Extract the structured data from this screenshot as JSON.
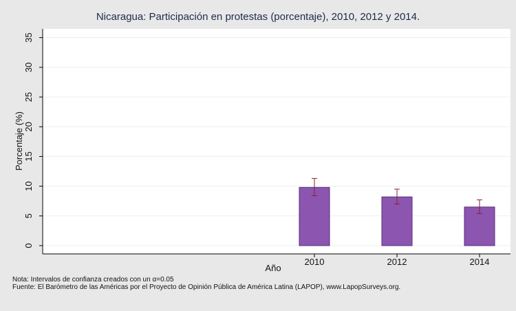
{
  "chart_data": {
    "type": "bar",
    "title": "Nicaragua: Participación en protestas (porcentaje), 2010, 2012 y 2014.",
    "xlabel": "Año",
    "ylabel": "Porcentaje (%)",
    "categories": [
      "2010",
      "2012",
      "2014"
    ],
    "values": [
      9.8,
      8.2,
      6.5
    ],
    "ci_low": [
      8.4,
      7.0,
      5.4
    ],
    "ci_high": [
      11.3,
      9.5,
      7.7
    ],
    "ylim": [
      0,
      36
    ],
    "yticks": [
      "0",
      "5",
      "10",
      "15",
      "20",
      "25",
      "30",
      "35"
    ],
    "bar_color": "#8b55b0",
    "bar_edge_color": "#5a2f78",
    "errorbar_color": "#8a1e2e",
    "grid": true
  },
  "notes": {
    "line1_prefix": "Nota: Intervalos de confianza creados con un ",
    "alpha_symbol": "α",
    "line1_suffix": "=0.05",
    "line2": "Fuente: El Barómetro de las Américas por el Proyecto de Opinión Pública de América Latina (LAPOP), www.LapopSurveys.org."
  }
}
